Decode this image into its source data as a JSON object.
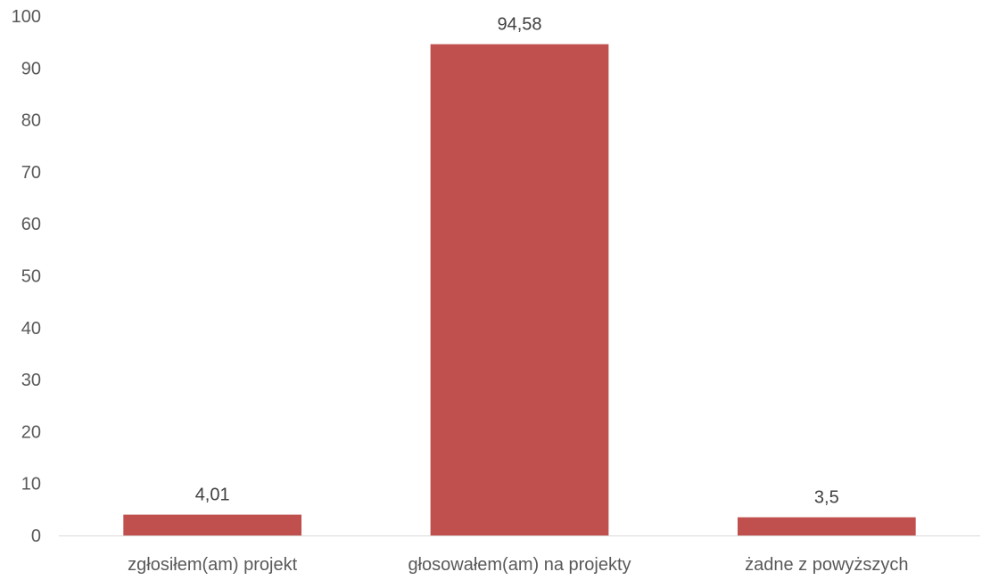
{
  "chart_data": {
    "type": "bar",
    "categories": [
      "zgłosiłem(am) projekt",
      "głosowałem(am) na projekty",
      "żadne z powyższych"
    ],
    "values": [
      4.01,
      94.58,
      3.5
    ],
    "data_labels": [
      "4,01",
      "94,58",
      "3,5"
    ],
    "ylim": [
      0,
      100
    ],
    "yticks": [
      "0",
      "10",
      "20",
      "30",
      "40",
      "50",
      "60",
      "70",
      "80",
      "90",
      "100"
    ],
    "bar_color": "#c0504d",
    "grid": false,
    "legend": "none"
  }
}
